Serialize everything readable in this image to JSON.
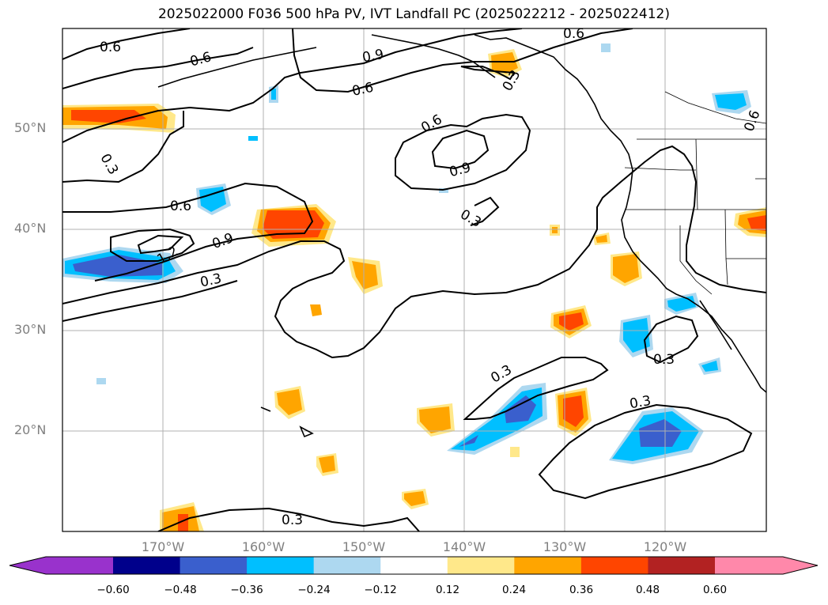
{
  "title": "2025022000 F036 500 hPa PV, IVT Landfall PC (2025022212 - 2025022412)",
  "map": {
    "projection": "PlateCarree",
    "extent_lon": [
      -180,
      -110
    ],
    "extent_lat": [
      10,
      60
    ],
    "grid": true,
    "lon_tick_labels": [
      "170°W",
      "160°W",
      "150°W",
      "140°W",
      "130°W",
      "120°W"
    ],
    "lat_tick_labels": [
      "50°N",
      "40°N",
      "30°N",
      "20°N"
    ]
  },
  "contours": {
    "variable": "500 hPa PV",
    "levels": [
      0.3,
      0.6,
      0.9,
      1.2
    ],
    "labels": [
      "0.6",
      "0.6",
      "0.9",
      "0.6",
      "0.6",
      "0.9",
      "0.6",
      "0.3",
      "0.6",
      "0.9",
      "1.2",
      "0.3",
      "0.3",
      "0.3",
      "0.3",
      "0.3",
      "0.3",
      "0.3",
      "0.6"
    ]
  },
  "colorbar": {
    "extend": "both",
    "ticks": [
      "−0.60",
      "−0.48",
      "−0.36",
      "−0.24",
      "−0.12",
      "0.12",
      "0.24",
      "0.36",
      "0.48",
      "0.60"
    ],
    "colors": [
      "#9932cc",
      "#00008b",
      "#3a5fcd",
      "#00bfff",
      "#add8f0",
      "#ffffff",
      "#ffe88a",
      "#ffa500",
      "#ff4500",
      "#b22222",
      "#ff88aa"
    ]
  }
}
